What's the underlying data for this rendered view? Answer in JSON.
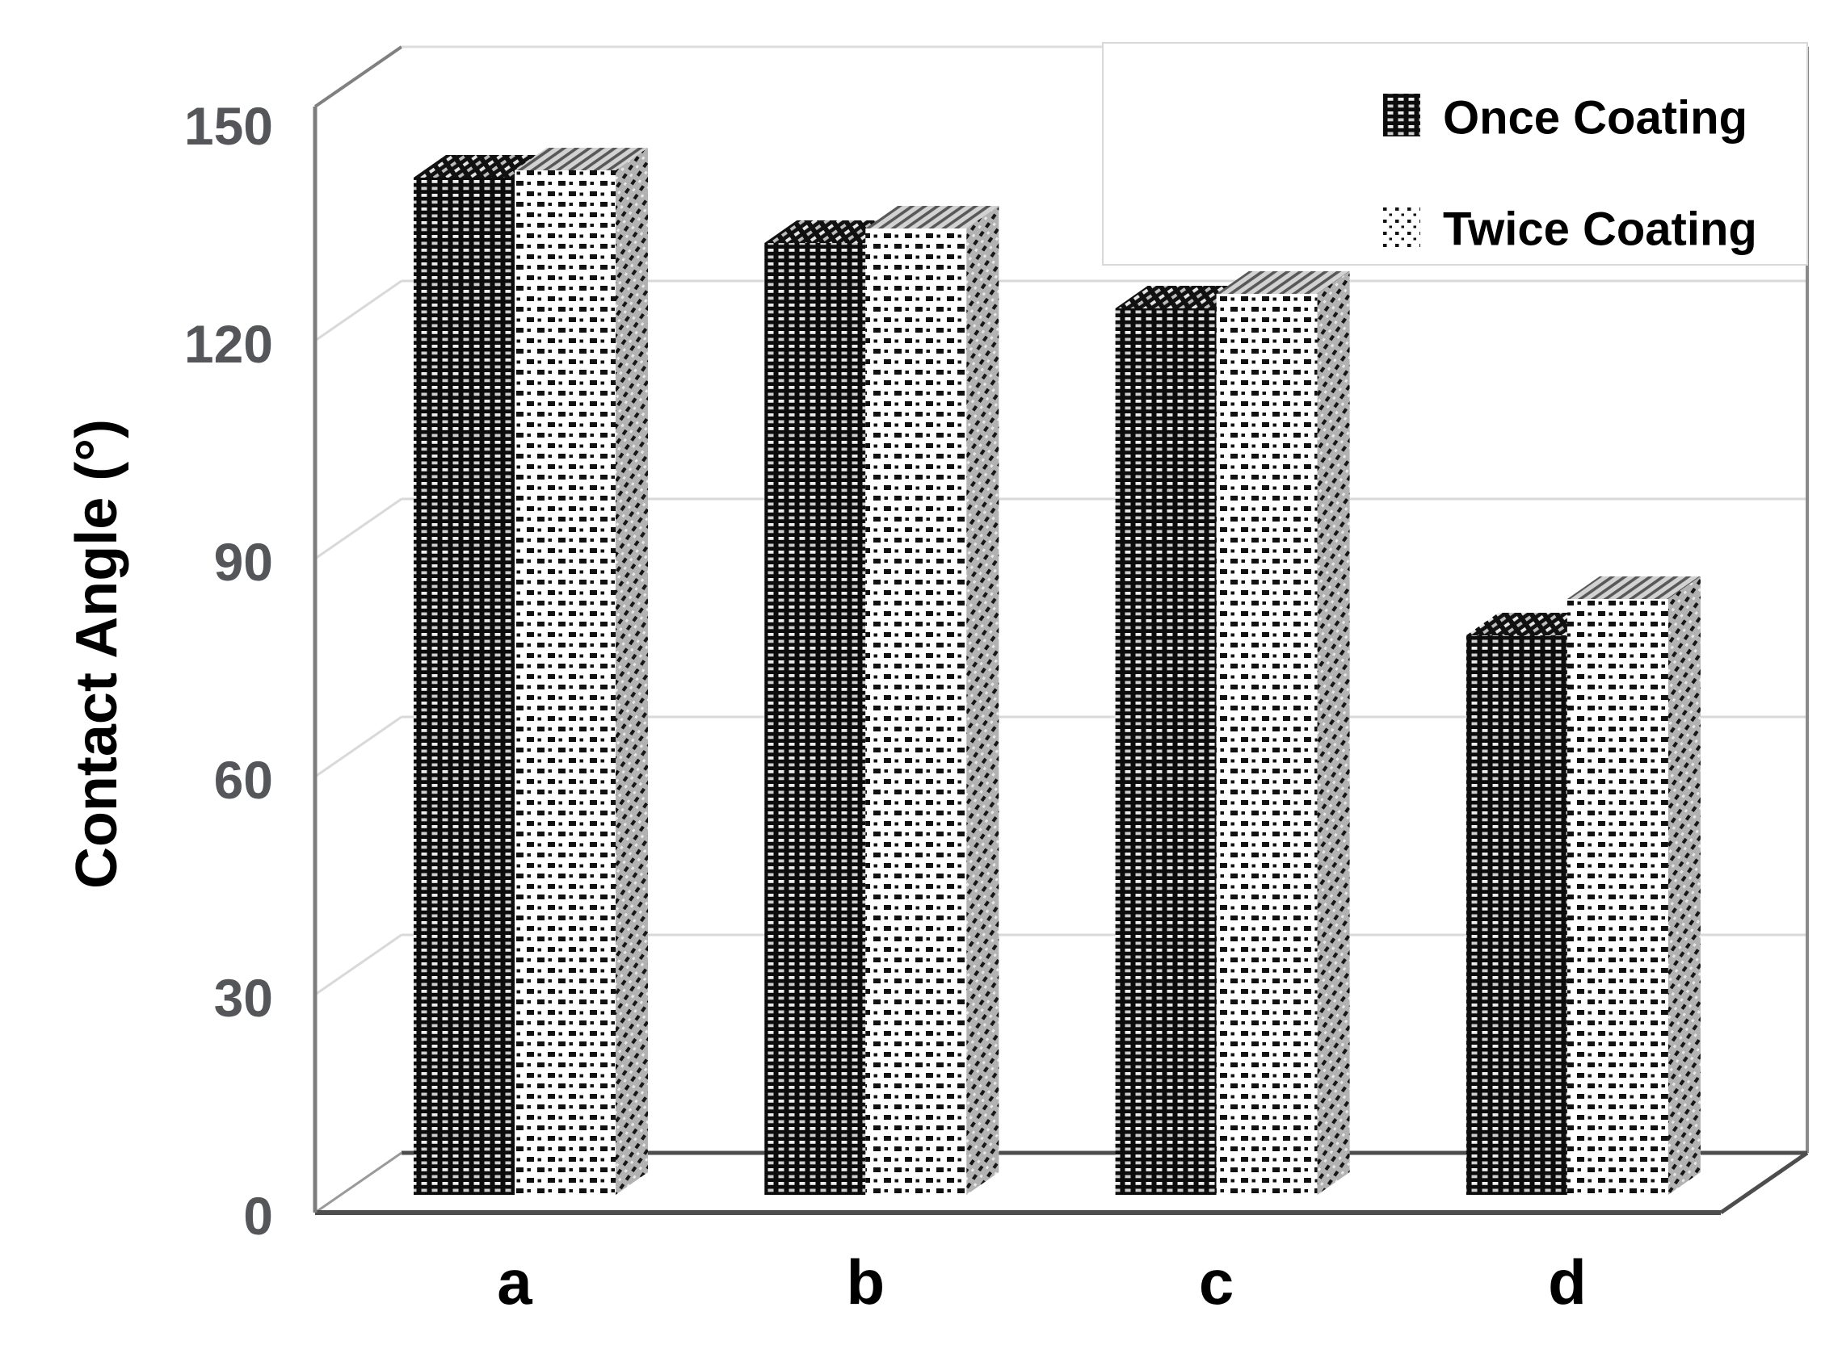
{
  "y_axis": {
    "label": "Contact Angle (°)",
    "ticks": [
      "0",
      "30",
      "60",
      "90",
      "120",
      "150"
    ],
    "tick_color": "#55565a"
  },
  "x_axis": {
    "categories": [
      "a",
      "b",
      "c",
      "d"
    ]
  },
  "legend": {
    "items": [
      {
        "label": "Once Coating",
        "swatch": "dense-weave-pattern-icon"
      },
      {
        "label": "Twice Coating",
        "swatch": "dotted-pattern-icon"
      }
    ]
  },
  "colors": {
    "background": "#ffffff",
    "bar_ink": "#0c0c0c",
    "tick_label": "#55565a",
    "gridline": "#d9d9d9",
    "frame_dark": "#4d4d4d",
    "frame_mid": "#808080"
  },
  "chart_data": {
    "type": "bar",
    "projection": "3d",
    "title": "",
    "xlabel": "",
    "ylabel": "Contact Angle (°)",
    "categories": [
      "a",
      "b",
      "c",
      "d"
    ],
    "series": [
      {
        "name": "Once Coating",
        "pattern": "dense-black-weave",
        "values": [
          140,
          131,
          122,
          77
        ]
      },
      {
        "name": "Twice Coating",
        "pattern": "black-dots-on-white",
        "values": [
          141,
          133,
          124,
          82
        ]
      }
    ],
    "ylim": [
      0,
      150
    ],
    "yticks": [
      0,
      30,
      60,
      90,
      120,
      150
    ],
    "grid": true,
    "legend_position": "top-right"
  }
}
